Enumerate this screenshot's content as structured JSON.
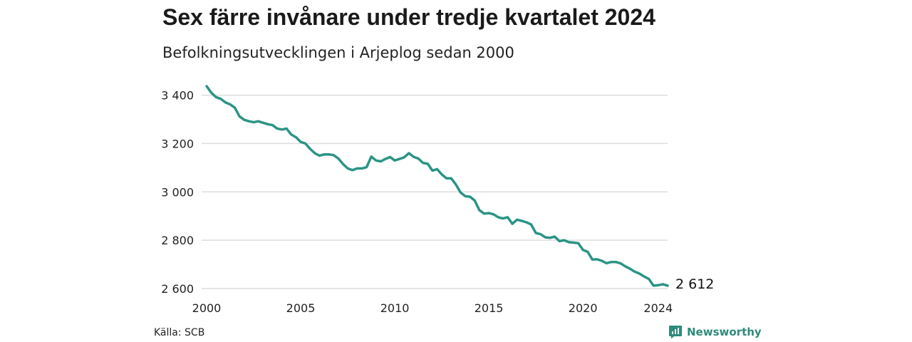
{
  "header": {
    "title": "Sex färre invånare under tredje kvartalet 2024",
    "subtitle": "Befolkningsutvecklingen i Arjeplog sedan 2000"
  },
  "footer": {
    "source": "Källa: SCB",
    "brand": "Newsworthy",
    "brand_icon": "newsworthy-logo-icon"
  },
  "colors": {
    "line": "#2a9485",
    "grid": "#dddddd",
    "text": "#222222"
  },
  "chart_data": {
    "type": "line",
    "title": "Sex färre invånare under tredje kvartalet 2024",
    "subtitle": "Befolkningsutvecklingen i Arjeplog sedan 2000",
    "x_start": 2000,
    "x_step": 0.25,
    "ylim": [
      2600,
      3440
    ],
    "yticks": [
      2600,
      2800,
      3000,
      3200,
      3400
    ],
    "ytick_labels": [
      "2 600",
      "2 800",
      "3 000",
      "3 200",
      "3 400"
    ],
    "xticks": [
      2000,
      2005,
      2010,
      2015,
      2020,
      2024
    ],
    "xtick_labels": [
      "2000",
      "2005",
      "2010",
      "2015",
      "2020",
      "2024"
    ],
    "grid": true,
    "end_label": "2 612",
    "series": [
      {
        "values": [
          3437,
          3410,
          3392,
          3385,
          3370,
          3362,
          3348,
          3312,
          3298,
          3292,
          3288,
          3292,
          3286,
          3280,
          3276,
          3262,
          3258,
          3262,
          3237,
          3226,
          3207,
          3200,
          3178,
          3160,
          3150,
          3155,
          3155,
          3152,
          3138,
          3115,
          3097,
          3090,
          3097,
          3097,
          3102,
          3146,
          3130,
          3126,
          3136,
          3144,
          3130,
          3136,
          3143,
          3160,
          3145,
          3138,
          3120,
          3116,
          3088,
          3094,
          3072,
          3056,
          3056,
          3030,
          2997,
          2982,
          2980,
          2964,
          2924,
          2910,
          2912,
          2907,
          2895,
          2890,
          2895,
          2868,
          2885,
          2880,
          2874,
          2865,
          2830,
          2825,
          2812,
          2810,
          2815,
          2796,
          2800,
          2792,
          2790,
          2788,
          2760,
          2752,
          2720,
          2721,
          2715,
          2705,
          2710,
          2710,
          2704,
          2692,
          2682,
          2670,
          2662,
          2650,
          2640,
          2612,
          2614,
          2618,
          2612
        ]
      }
    ]
  }
}
